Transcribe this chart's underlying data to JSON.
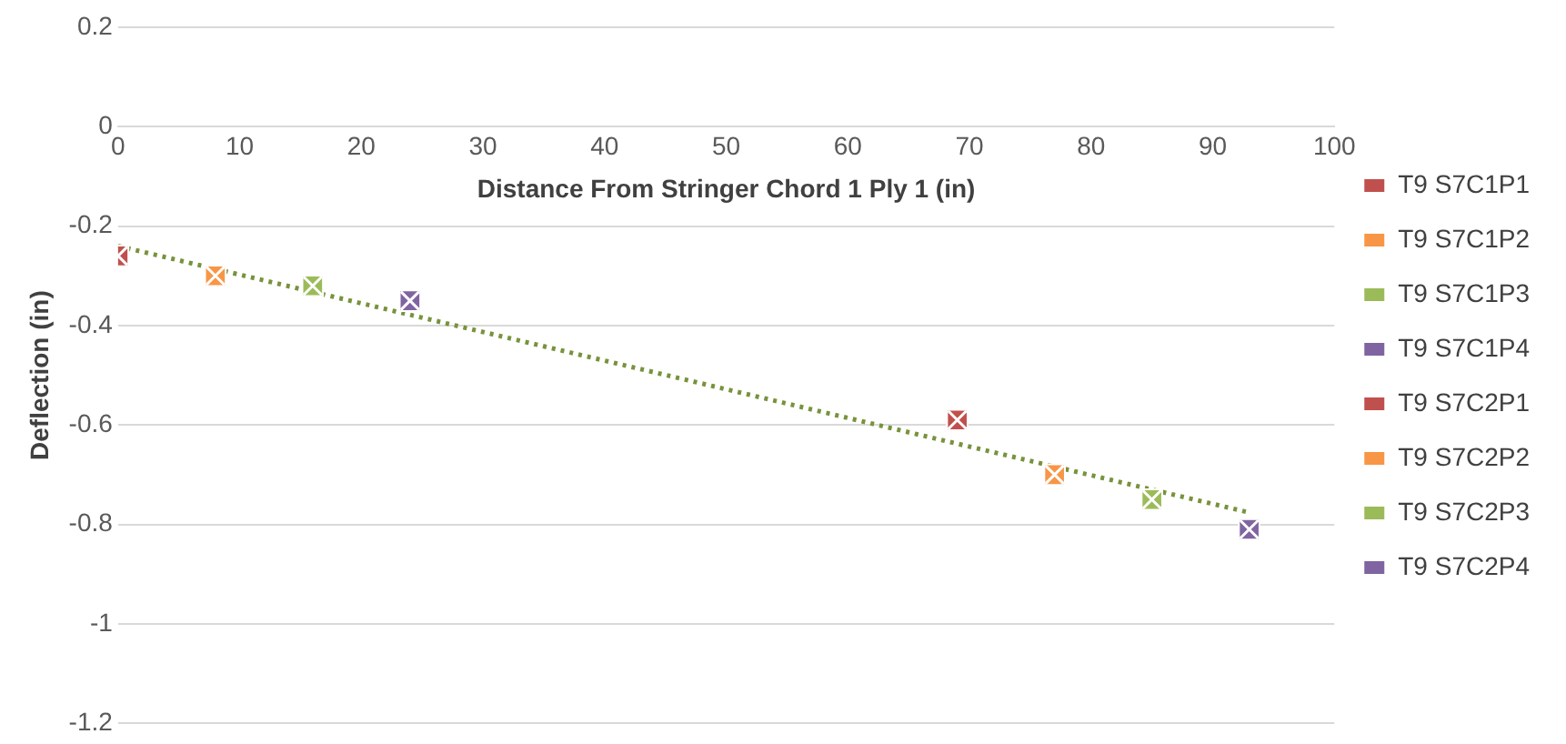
{
  "chart_data": {
    "type": "scatter",
    "xlabel": "Distance From Stringer Chord 1 Ply 1 (in)",
    "ylabel": "Deflection (in)",
    "xlim": [
      0,
      100
    ],
    "xticks": [
      0,
      10,
      20,
      30,
      40,
      50,
      60,
      70,
      80,
      90,
      100
    ],
    "ylim": [
      -1.2,
      0.2
    ],
    "yticks": [
      -1.2,
      -1,
      -0.8,
      -0.6,
      -0.4,
      -0.2,
      0,
      0.2
    ],
    "grid": "y",
    "legend": "right",
    "marker": "square",
    "series": [
      {
        "name": "T9 S7C1P1",
        "color": "#c0504d",
        "x": [
          0
        ],
        "values": [
          -0.26
        ]
      },
      {
        "name": "T9 S7C1P2",
        "color": "#f79646",
        "x": [
          8
        ],
        "values": [
          -0.3
        ]
      },
      {
        "name": "T9 S7C1P3",
        "color": "#9bbb59",
        "x": [
          16
        ],
        "values": [
          -0.32
        ]
      },
      {
        "name": "T9 S7C1P4",
        "color": "#8064a2",
        "x": [
          24
        ],
        "values": [
          -0.35
        ]
      },
      {
        "name": "T9 S7C2P1",
        "color": "#c0504d",
        "x": [
          69
        ],
        "values": [
          -0.59
        ]
      },
      {
        "name": "T9 S7C2P2",
        "color": "#f79646",
        "x": [
          77
        ],
        "values": [
          -0.7
        ]
      },
      {
        "name": "T9 S7C2P3",
        "color": "#9bbb59",
        "x": [
          85
        ],
        "values": [
          -0.75
        ]
      },
      {
        "name": "T9 S7C2P4",
        "color": "#8064a2",
        "x": [
          93
        ],
        "values": [
          -0.81
        ]
      },
      {
        "type": "line",
        "color": "#77933c",
        "line_style": "dotted",
        "marker": "none",
        "x": [
          0,
          93
        ],
        "values": [
          -0.24,
          -0.776
        ]
      }
    ]
  }
}
